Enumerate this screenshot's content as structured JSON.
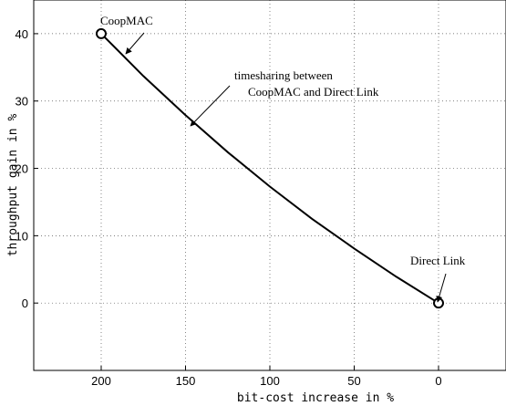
{
  "chart_data": {
    "type": "line",
    "title": "",
    "xlabel": "bit-cost increase in %",
    "ylabel": "throughput gain in %",
    "x_reversed": true,
    "xlim": [
      240,
      -40
    ],
    "ylim": [
      -10,
      45
    ],
    "xticks": [
      200,
      150,
      100,
      50,
      0
    ],
    "yticks": [
      0,
      10,
      20,
      30,
      40
    ],
    "grid": true,
    "series": [
      {
        "x": [
          200,
          175,
          150,
          125,
          100,
          75,
          50,
          25,
          0
        ],
        "y": [
          40,
          33.7,
          27.9,
          22.4,
          17.3,
          12.5,
          8.1,
          3.9,
          0
        ]
      }
    ],
    "endpoints": [
      {
        "label": "CoopMAC",
        "x": 200,
        "y": 40
      },
      {
        "label": "Direct Link",
        "x": 0,
        "y": 0
      }
    ],
    "annotations": [
      {
        "text": "CoopMAC",
        "x": 200,
        "y": 40
      },
      {
        "text": "timesharing between",
        "x": 155,
        "y": 29
      },
      {
        "text": "CoopMAC and Direct Link",
        "x": 155,
        "y": 29
      },
      {
        "text": "Direct Link",
        "x": 0,
        "y": 0
      }
    ]
  }
}
